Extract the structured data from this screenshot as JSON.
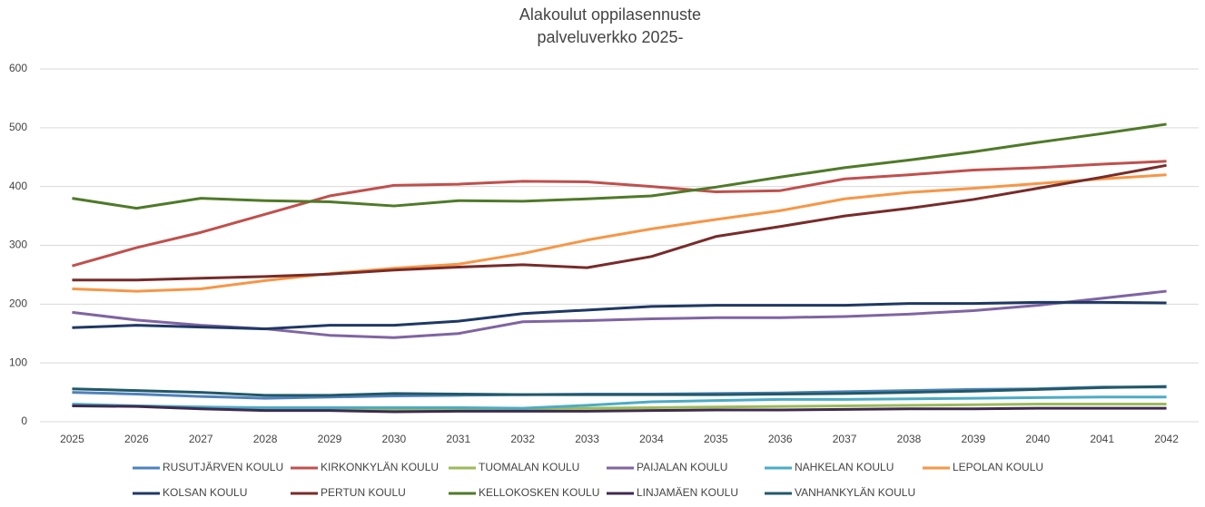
{
  "chart_data": {
    "type": "line",
    "title": "Alakoulut oppilasennuste",
    "subtitle": "palveluverkko 2025-",
    "categories": [
      "2025",
      "2026",
      "2027",
      "2028",
      "2029",
      "2030",
      "2031",
      "2032",
      "2033",
      "2034",
      "2035",
      "2036",
      "2037",
      "2038",
      "2039",
      "2040",
      "2041",
      "2042"
    ],
    "ylim": [
      0,
      600
    ],
    "yticks": [
      0,
      100,
      200,
      300,
      400,
      500,
      600
    ],
    "grid": true,
    "series": [
      {
        "name": "RUSUTJÄRVEN KOULU",
        "color": "#4f81bd",
        "values": [
          50,
          47,
          43,
          40,
          42,
          44,
          45,
          46,
          47,
          47,
          48,
          49,
          51,
          53,
          55,
          56,
          59,
          59
        ]
      },
      {
        "name": "KIRKONKYLÄN KOULU",
        "color": "#c0504d",
        "values": [
          265,
          296,
          322,
          353,
          384,
          402,
          404,
          409,
          408,
          400,
          391,
          393,
          413,
          420,
          428,
          432,
          438,
          443
        ]
      },
      {
        "name": "TUOMALAN KOULU",
        "color": "#9bbb59",
        "values": [
          28,
          27,
          25,
          23,
          22,
          21,
          21,
          22,
          23,
          24,
          25,
          26,
          27,
          28,
          29,
          30,
          30,
          30
        ]
      },
      {
        "name": "PAIJALAN KOULU",
        "color": "#8064a2",
        "values": [
          186,
          173,
          164,
          158,
          147,
          143,
          150,
          170,
          172,
          175,
          177,
          177,
          179,
          183,
          189,
          198,
          210,
          222
        ]
      },
      {
        "name": "NAHKELAN KOULU",
        "color": "#4bacc6",
        "values": [
          30,
          27,
          25,
          24,
          24,
          24,
          24,
          23,
          28,
          34,
          36,
          38,
          38,
          39,
          40,
          41,
          42,
          42
        ]
      },
      {
        "name": "LEPOLAN KOULU",
        "color": "#f79646",
        "values": [
          226,
          222,
          226,
          240,
          252,
          261,
          268,
          286,
          309,
          328,
          344,
          359,
          379,
          390,
          397,
          405,
          413,
          420
        ]
      },
      {
        "name": "KOLSAN KOULU",
        "color": "#1f3864",
        "values": [
          160,
          164,
          161,
          158,
          164,
          164,
          171,
          184,
          190,
          196,
          198,
          198,
          198,
          201,
          201,
          203,
          203,
          202
        ]
      },
      {
        "name": "PERTUN KOULU",
        "color": "#772c2a",
        "values": [
          241,
          241,
          244,
          247,
          251,
          258,
          263,
          267,
          262,
          281,
          315,
          332,
          350,
          363,
          378,
          397,
          416,
          436
        ]
      },
      {
        "name": "KELLOKOSKEN KOULU",
        "color": "#4f7a28",
        "values": [
          380,
          363,
          380,
          376,
          374,
          367,
          376,
          375,
          379,
          384,
          399,
          416,
          432,
          445,
          459,
          475,
          490,
          506
        ]
      },
      {
        "name": "LINJAMÄEN KOULU",
        "color": "#3f2a4f",
        "values": [
          27,
          26,
          22,
          19,
          19,
          17,
          18,
          18,
          18,
          19,
          20,
          20,
          21,
          22,
          22,
          23,
          23,
          23
        ]
      },
      {
        "name": "VANHANKYLÄN KOULU",
        "color": "#215968",
        "values": [
          56,
          53,
          50,
          45,
          45,
          48,
          47,
          46,
          46,
          46,
          46,
          47,
          48,
          50,
          52,
          55,
          58,
          60
        ]
      }
    ]
  }
}
